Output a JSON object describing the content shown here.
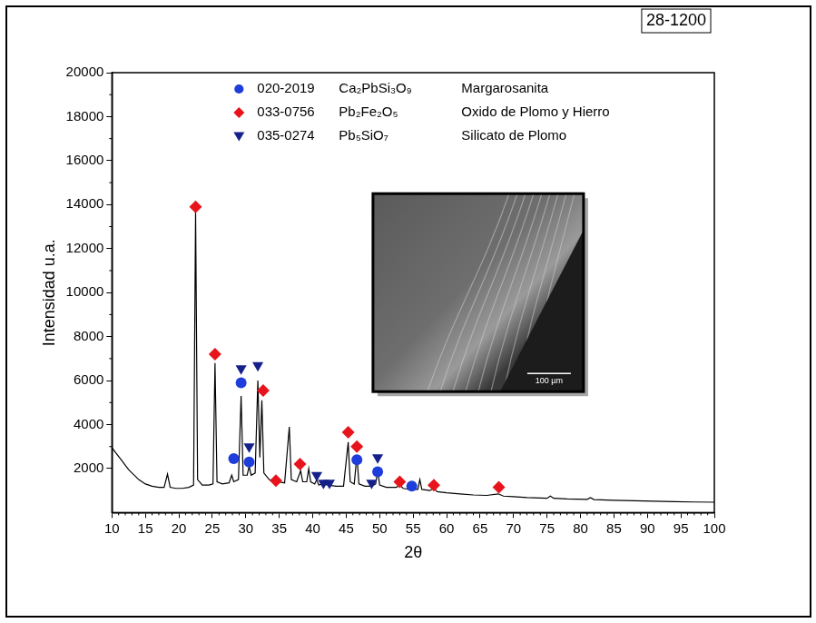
{
  "chart_data": {
    "type": "line",
    "annotation": "28-1200",
    "x_label": "2θ",
    "y_label": "Intensidad u.a.",
    "xlim": [
      10,
      100
    ],
    "xticks": [
      10,
      15,
      20,
      25,
      30,
      35,
      40,
      45,
      50,
      55,
      60,
      65,
      70,
      75,
      80,
      85,
      90,
      95,
      100
    ],
    "ylim": [
      0,
      20000
    ],
    "yticks": [
      2000,
      4000,
      6000,
      8000,
      10000,
      12000,
      14000,
      16000,
      18000,
      20000
    ],
    "grid": false,
    "legend": "upper center",
    "inset": {
      "scale_bar": "100 µm"
    },
    "series": [
      {
        "type": "line",
        "color": "#000000",
        "line_style": "solid",
        "x": [
          10,
          10.5,
          11,
          11.5,
          12,
          12.5,
          13,
          13.5,
          14,
          14.5,
          15,
          15.5,
          16,
          17,
          17.8,
          18.3,
          18.7,
          19.5,
          20.5,
          21.5,
          22.2,
          22.5,
          22.8,
          23.5,
          24.5,
          25.1,
          25.4,
          25.7,
          26.5,
          27.5,
          27.9,
          28.2,
          28.9,
          29.3,
          29.6,
          30.2,
          30.5,
          30.8,
          31.4,
          31.8,
          32.1,
          32.4,
          32.7,
          33.5,
          34.2,
          34.5,
          34.8,
          35.8,
          36.5,
          36.8,
          37.6,
          38.2,
          38.5,
          39.1,
          39.4,
          39.7,
          40.3,
          40.6,
          40.9,
          41.5,
          42.3,
          43.5,
          44.6,
          45.3,
          45.6,
          46.2,
          46.6,
          46.9,
          47.8,
          48.8,
          49.4,
          49.7,
          50,
          51,
          52.5,
          53,
          53.5,
          54.5,
          54.8,
          55.1,
          55.7,
          56,
          56.3,
          57.5,
          58.1,
          58.6,
          60,
          62,
          64,
          66,
          67.7,
          68.5,
          70,
          72,
          75,
          75.5,
          76,
          78,
          81,
          81.5,
          82,
          85,
          88,
          91,
          94,
          97,
          100
        ],
        "values": [
          2950,
          2750,
          2550,
          2350,
          2150,
          1950,
          1800,
          1650,
          1500,
          1400,
          1300,
          1250,
          1200,
          1150,
          1150,
          1750,
          1150,
          1100,
          1100,
          1150,
          1250,
          13700,
          1500,
          1250,
          1250,
          1300,
          6800,
          1400,
          1300,
          1350,
          1700,
          1400,
          1500,
          5300,
          1700,
          1700,
          2100,
          1700,
          1800,
          6000,
          2500,
          5100,
          1800,
          1500,
          1400,
          1550,
          1400,
          1350,
          3900,
          1500,
          1400,
          1900,
          1400,
          1400,
          2000,
          1400,
          1300,
          1500,
          1250,
          1300,
          1250,
          1200,
          1200,
          3200,
          1400,
          1300,
          2600,
          1300,
          1200,
          1200,
          1300,
          1900,
          1250,
          1150,
          1150,
          1250,
          1100,
          1050,
          1150,
          1050,
          1050,
          1500,
          1050,
          1000,
          1100,
          950,
          900,
          850,
          800,
          780,
          850,
          750,
          720,
          680,
          650,
          750,
          650,
          620,
          600,
          680,
          590,
          560,
          540,
          520,
          500,
          480,
          470
        ]
      },
      {
        "name": "020-2019 Ca₂PbSi₃O₉ Margarosanita",
        "type": "scatter",
        "marker": "circle",
        "color": "#1f3ddb",
        "x": [
          28.2,
          29.3,
          30.5,
          46.6,
          49.7,
          54.8
        ],
        "values": [
          2450,
          5900,
          2300,
          2400,
          1850,
          1200
        ]
      },
      {
        "name": "033-0756 Pb₂Fe₂O₅ Oxido de Plomo y Hierro",
        "type": "scatter",
        "marker": "diamond",
        "color": "#e8141c",
        "x": [
          22.5,
          25.4,
          32.6,
          34.5,
          38.1,
          45.3,
          46.6,
          53.0,
          58.1,
          67.8
        ],
        "values": [
          13900,
          7200,
          5550,
          1450,
          2200,
          3650,
          3000,
          1400,
          1250,
          1150
        ]
      },
      {
        "name": "035-0274 Pb₅SiO₇ Silicato de Plomo",
        "type": "scatter",
        "marker": "triangle_down",
        "color": "#15208a",
        "x": [
          29.3,
          30.5,
          31.8,
          40.6,
          41.6,
          42.5,
          48.8,
          49.7
        ],
        "values": [
          6550,
          3000,
          6700,
          1700,
          1350,
          1350,
          1350,
          2500
        ]
      }
    ]
  }
}
